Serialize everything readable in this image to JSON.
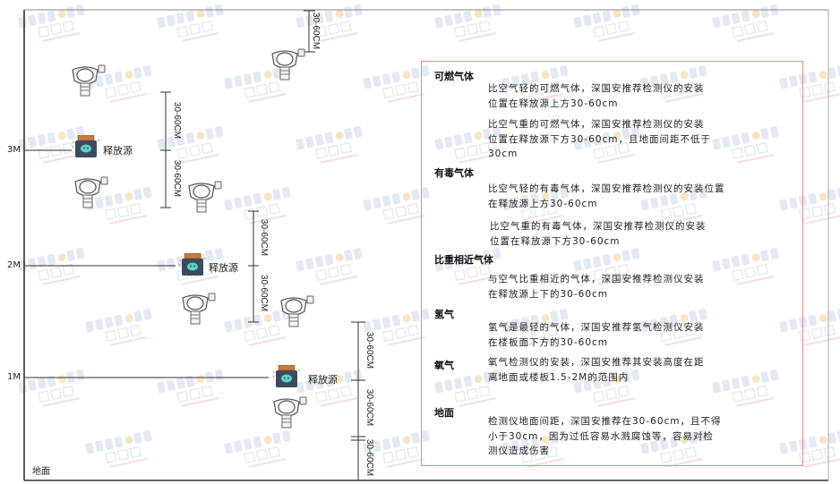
{
  "watermark": {
    "brand": "SINGOAN",
    "cn": "深国安"
  },
  "levels": [
    {
      "label": "3M"
    },
    {
      "label": "2M"
    },
    {
      "label": "1M"
    }
  ],
  "ground_label": "地面",
  "source_label": "释放源",
  "dimension_label": "30-60CM",
  "info": {
    "sections": [
      {
        "title": "可燃气体",
        "items": [
          "比空气轻的可燃气体，深国安推荐检测仪的安装\n位置在释放源上方30-60cm",
          "比空气重的可燃气体，深国安推荐检测仪的安装\n位置在释放源下方30-60cm，且地面间距不低于\n30cm"
        ]
      },
      {
        "title": "有毒气体",
        "items": [
          "比空气轻的有毒气体，深国安推荐检测仪的安装位置\n在释放源上方30-60cm",
          "比空气重的有毒气体，深国安推荐检测仪的安装\n位置在释放源下方30-60cm"
        ]
      },
      {
        "title": "比重相近气体",
        "items": [
          "与空气比重相近的气体，深国安推荐检测仪安装\n在释放源上下的30-60cm"
        ]
      },
      {
        "title": "氢气",
        "items": [
          "氢气是最轻的气体，深国安推荐氢气检测仪安装\n在楼板面下方的30-60cm"
        ]
      },
      {
        "title": "氧气",
        "items": [
          "氧气检测仪的安装，深国安推荐其安装高度在距\n离地面或楼板1.5-2M的范围内"
        ]
      },
      {
        "title": "地面",
        "items": [
          "检测仪地面间距，深国安推荐在30-60cm，且不得\n小于30cm，因为过低容易水溅腐蚀等，容易对检\n测仪造成伤害"
        ]
      }
    ]
  },
  "colors": {
    "box_border": "#e88a8f",
    "source_body": "#3b4a5e",
    "source_cap": "#c77a3a",
    "source_face": "#5fd3c8"
  }
}
